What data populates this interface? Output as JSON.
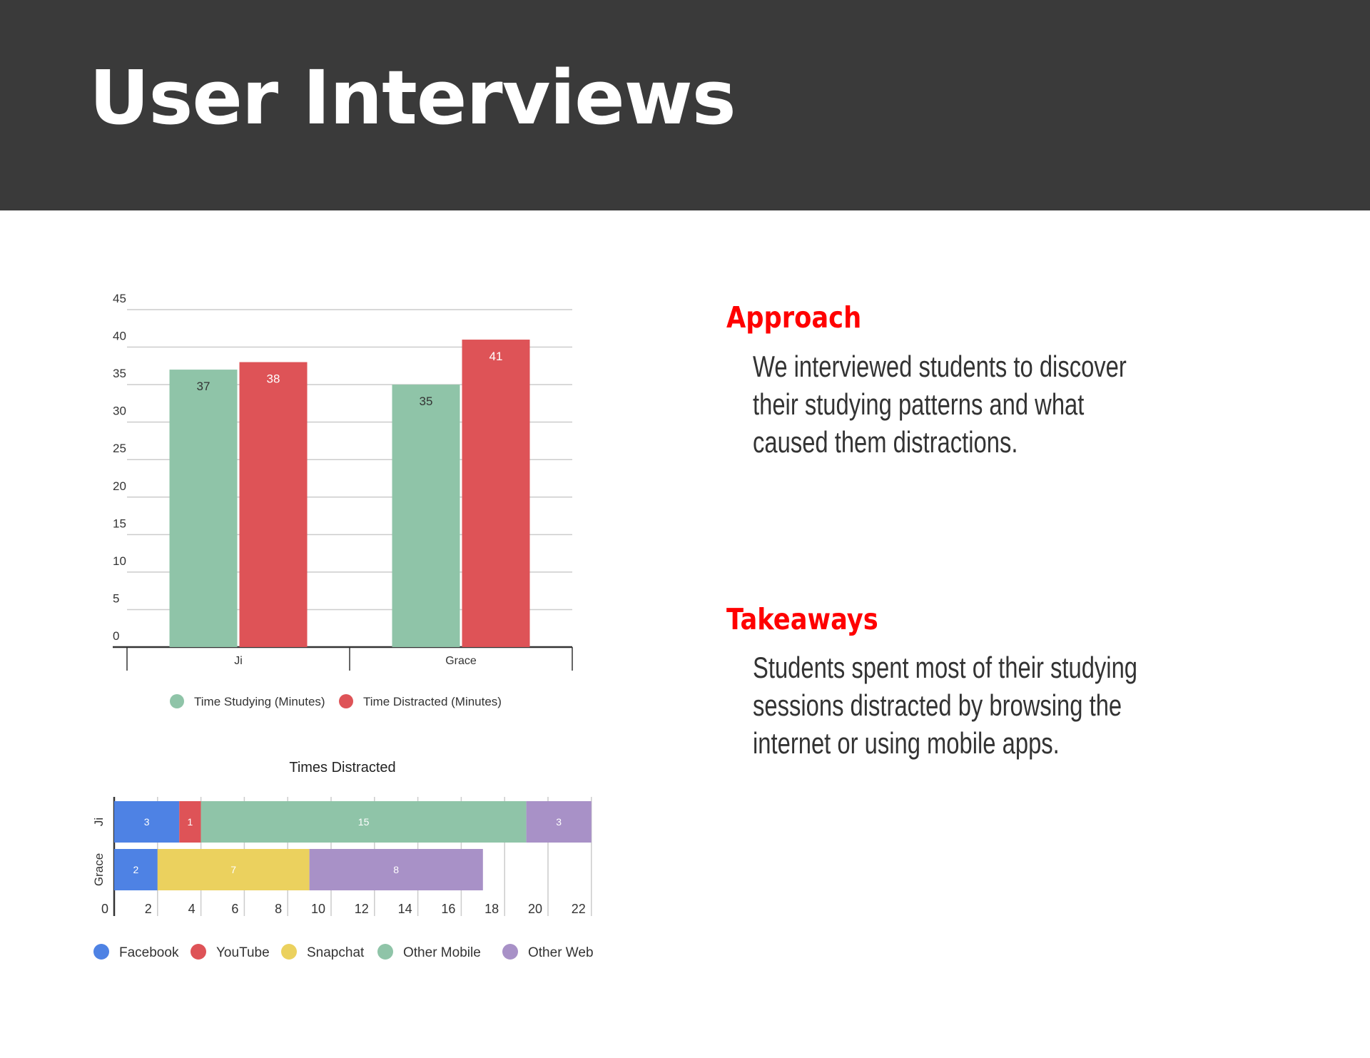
{
  "page": {
    "title": "User Interviews",
    "approach": {
      "heading": "Approach",
      "body": "We interviewed students to discover their studying patterns and what caused them distractions."
    },
    "takeaways": {
      "heading": "Takeaways",
      "body": "Students spent most of their studying sessions distracted by browsing the internet or using mobile apps."
    }
  },
  "colors": {
    "header_bg": "#3a3a3a",
    "accent": "#ff0000",
    "studying": "#8fc4a8",
    "distracted": "#de5357",
    "facebook": "#4e82e4",
    "youtube": "#de5357",
    "snapchat": "#ebd15e",
    "other_mobile": "#8fc4a8",
    "other_web": "#a891c7"
  },
  "chart_data": [
    {
      "type": "bar",
      "title": "",
      "xlabel": "",
      "ylabel": "",
      "categories": [
        "Ji",
        "Grace"
      ],
      "series": [
        {
          "name": "Time Studying (Minutes)",
          "values": [
            37,
            35
          ]
        },
        {
          "name": "Time Distracted (Minutes)",
          "values": [
            38,
            41
          ]
        }
      ],
      "ylim": [
        0,
        45
      ],
      "yticks": [
        0,
        5,
        10,
        15,
        20,
        25,
        30,
        35,
        40,
        45
      ],
      "data_labels": true,
      "grid": true,
      "legend": "bottom"
    },
    {
      "type": "bar",
      "orientation": "horizontal",
      "stacked": true,
      "title": "Times Distracted",
      "xlabel": "",
      "ylabel": "",
      "categories": [
        "Ji",
        "Grace"
      ],
      "series": [
        {
          "name": "Facebook",
          "values": [
            3,
            2
          ]
        },
        {
          "name": "YouTube",
          "values": [
            1,
            0
          ]
        },
        {
          "name": "Snapchat",
          "values": [
            0,
            7
          ]
        },
        {
          "name": "Other Mobile",
          "values": [
            15,
            0
          ]
        },
        {
          "name": "Other Web",
          "values": [
            3,
            8
          ]
        }
      ],
      "xlim": [
        0,
        22
      ],
      "xticks": [
        0,
        2,
        4,
        6,
        8,
        10,
        12,
        14,
        16,
        18,
        20,
        22
      ],
      "data_labels": true,
      "grid": true,
      "legend": "bottom"
    }
  ]
}
